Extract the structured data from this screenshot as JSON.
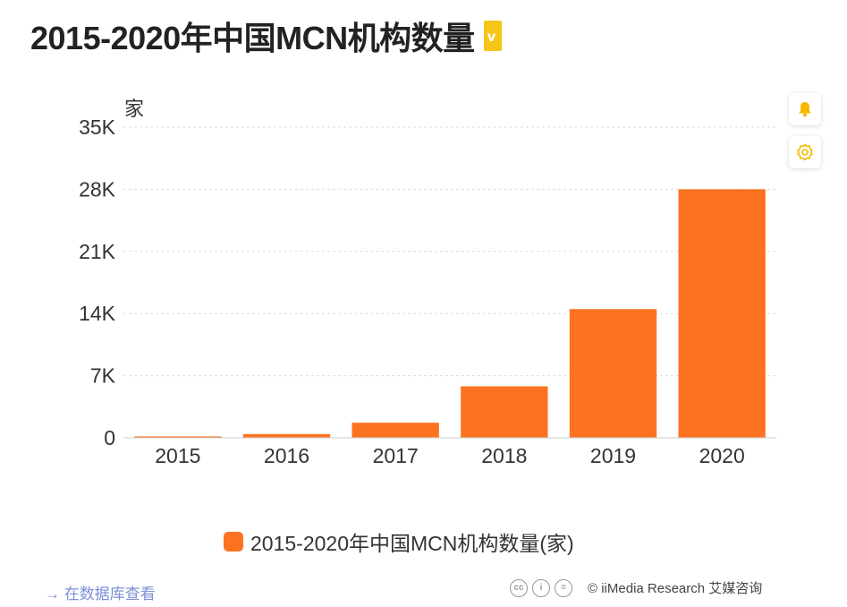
{
  "title": "2015-2020年中国MCN机构数量",
  "badge_text": "v",
  "icons": {
    "bell": "bell-icon",
    "gear": "gear-icon",
    "cc": "creative-commons-icon",
    "by": "attribution-icon",
    "nd": "no-derivatives-icon"
  },
  "colors": {
    "bar": "#fb7320",
    "accent": "#f5c518",
    "link": "#7b8fd6"
  },
  "chart_data": {
    "type": "bar",
    "title": "",
    "ylabel": "家",
    "xlabel": "",
    "categories": [
      "2015",
      "2016",
      "2017",
      "2018",
      "2019",
      "2020"
    ],
    "series": [
      {
        "name": "2015-2020年中国MCN机构数量(家)",
        "values": [
          160,
          420,
          1700,
          5800,
          14500,
          28000
        ]
      }
    ],
    "ylim": [
      0,
      35000
    ],
    "yticks": [
      0,
      7000,
      14000,
      21000,
      28000,
      35000
    ],
    "ytick_labels": [
      "0",
      "7K",
      "14K",
      "21K",
      "28K",
      "35K"
    ],
    "grid": true,
    "legend_position": "bottom"
  },
  "legend_label": "2015-2020年中国MCN机构数量(家)",
  "footer": {
    "db_link": "→ 在数据库查看",
    "cc_glyphs": [
      "cc",
      "i",
      "="
    ],
    "copyright": "© iiMedia Research 艾媒咨询"
  }
}
